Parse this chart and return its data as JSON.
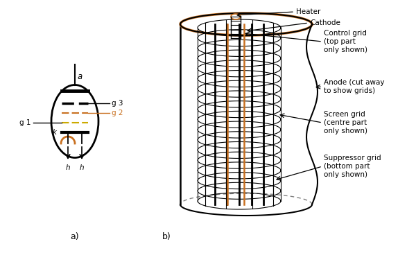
{
  "bg_color": "#ffffff",
  "line_color": "#000000",
  "orange_color": "#c87020",
  "red_color": "#aa0000",
  "title_a": "a)",
  "title_b": "b)",
  "labels": {
    "a_label": "a",
    "g1_label": "g 1",
    "g2_label": "g 2",
    "g3_label": "g 3",
    "k_label": "k",
    "h_label": "h",
    "heater": "Heater",
    "cathode": "Cathode",
    "control_grid": "Control grid\n(top part\nonly shown)",
    "anode": "Anode (cut away\nto show grids)",
    "screen_grid": "Screen grid\n(centre part\nonly shown)",
    "suppressor_grid": "Suppressor grid\n(bottom part\nonly shown)"
  },
  "font_size_label": 7.5,
  "font_size_title": 9
}
